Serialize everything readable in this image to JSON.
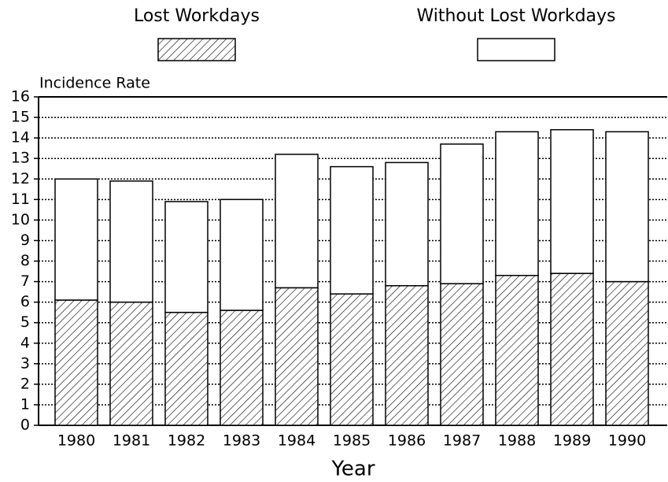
{
  "chart_data": {
    "type": "stacked_bar",
    "y_label": "Incidence Rate",
    "x_label": "Year",
    "categories": [
      "1980",
      "1981",
      "1982",
      "1983",
      "1984",
      "1985",
      "1986",
      "1987",
      "1988",
      "1989",
      "1990"
    ],
    "series": [
      {
        "name": "Lost Workdays",
        "color": "#000000",
        "pattern": "hatch",
        "values": [
          6.1,
          6.0,
          5.5,
          5.6,
          6.7,
          6.4,
          6.8,
          6.9,
          7.3,
          7.4,
          7.0
        ]
      },
      {
        "name": "Without Lost Workdays",
        "color": "#ffffff",
        "pattern": "solid",
        "values": [
          5.9,
          5.9,
          5.4,
          5.4,
          6.5,
          6.2,
          6.0,
          6.8,
          7.0,
          7.0,
          7.3
        ]
      }
    ],
    "ylim": [
      0,
      16
    ],
    "yticks": [
      0,
      1,
      2,
      3,
      4,
      5,
      6,
      7,
      8,
      9,
      10,
      11,
      12,
      13,
      14,
      15,
      16
    ],
    "grid": true,
    "legend": "top"
  }
}
